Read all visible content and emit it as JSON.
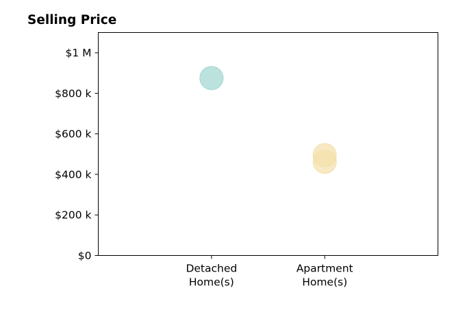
{
  "chart_data": {
    "type": "scatter",
    "title": "Selling Price",
    "xlabel": "",
    "ylabel": "",
    "categories": [
      [
        "Detached",
        "Home(s)"
      ],
      [
        "Apartment",
        "Home(s)"
      ]
    ],
    "y_ticks": [
      {
        "value": 0,
        "label": "$0"
      },
      {
        "value": 200000,
        "label": "$200 k"
      },
      {
        "value": 400000,
        "label": "$400 k"
      },
      {
        "value": 600000,
        "label": "$600 k"
      },
      {
        "value": 800000,
        "label": "$800 k"
      },
      {
        "value": 1000000,
        "label": "$1 M"
      }
    ],
    "ylim": [
      0,
      1100000
    ],
    "xlim": [
      -1,
      2
    ],
    "grid": false,
    "points": [
      {
        "category": 0,
        "y": 875000,
        "color": "#9fd6d0"
      },
      {
        "category": 1,
        "y": 495000,
        "color": "#f3dfaa"
      },
      {
        "category": 1,
        "y": 462000,
        "color": "#f3dfaa"
      }
    ]
  }
}
